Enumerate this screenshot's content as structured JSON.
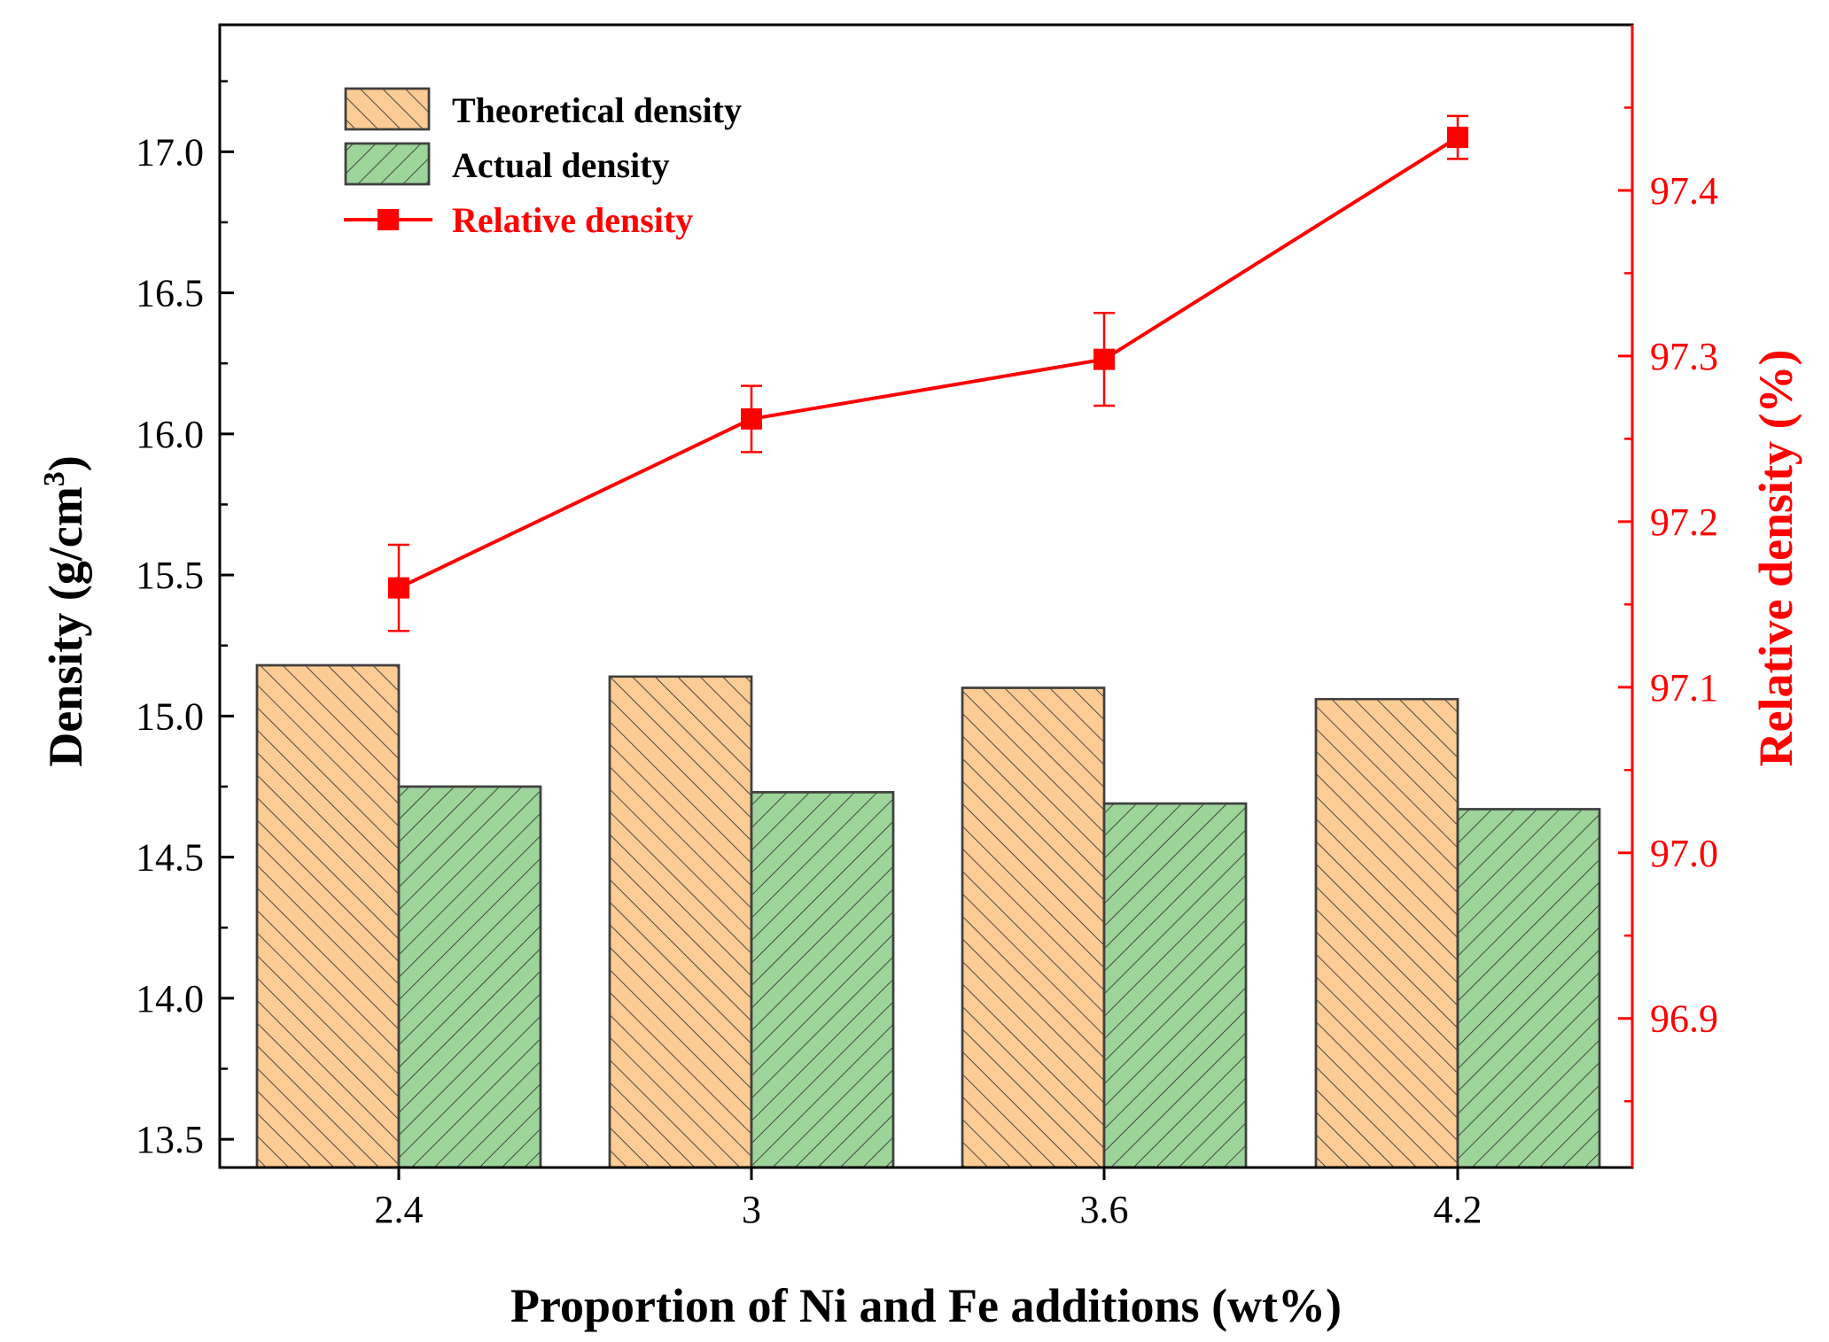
{
  "chart_data": {
    "type": "bar",
    "categories": [
      "2.4",
      "3",
      "3.6",
      "4.2"
    ],
    "series": [
      {
        "name": "Theoretical density",
        "axis": "left",
        "kind": "bar",
        "color": "#FDCB94",
        "hatch": "backslash",
        "values": [
          15.18,
          15.14,
          15.1,
          15.06
        ]
      },
      {
        "name": "Actual density",
        "axis": "left",
        "kind": "bar",
        "color": "#9DD49A",
        "hatch": "slash",
        "values": [
          14.75,
          14.73,
          14.69,
          14.67
        ]
      },
      {
        "name": "Relative density",
        "axis": "right",
        "kind": "line",
        "color": "#FF0000",
        "marker": "square",
        "values": [
          97.16,
          97.262,
          97.298,
          97.432
        ],
        "errors": [
          0.026,
          0.02,
          0.028,
          0.013
        ]
      }
    ],
    "xlabel": "Proportion of Ni and Fe additions (wt%)",
    "ylabel": {
      "main": "Density (g/cm",
      "sup": "3",
      "end": ")"
    },
    "y2label": "Relative density (%)",
    "ylim": [
      13.4,
      17.45
    ],
    "y2lim": [
      96.81,
      97.5
    ],
    "yticks": [
      "13.5",
      "14.0",
      "14.5",
      "15.0",
      "15.5",
      "16.0",
      "16.5",
      "17.0"
    ],
    "y2ticks": [
      "96.9",
      "97.0",
      "97.1",
      "97.2",
      "97.3",
      "97.4"
    ],
    "legend_position": "top-left",
    "grid": false
  },
  "colors": {
    "axis": "#000000",
    "right_axis": "#FF0000",
    "bar_edge": "#404040"
  }
}
